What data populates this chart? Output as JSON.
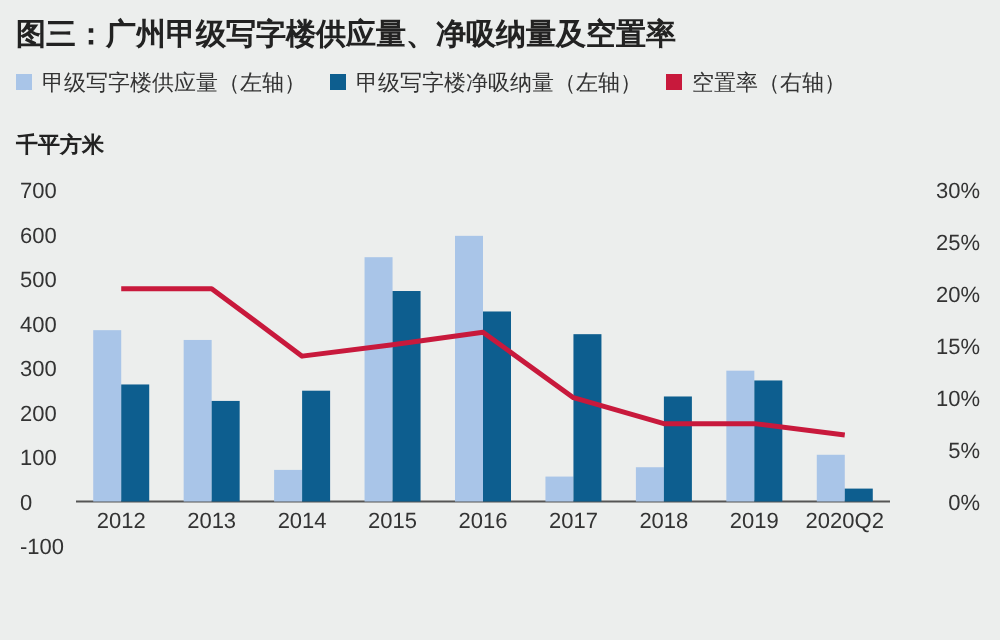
{
  "chart_data": {
    "type": "bar",
    "title": "图三：广州甲级写字楼供应量、净吸纳量及空置率",
    "ylabel": "千平方米",
    "categories": [
      "2012",
      "2013",
      "2014",
      "2015",
      "2016",
      "2017",
      "2018",
      "2019",
      "2020Q2"
    ],
    "series": [
      {
        "name": "甲级写字楼供应量（左轴）",
        "color": "#a9c5e8",
        "values": [
          385,
          363,
          71,
          549,
          597,
          56,
          77,
          294,
          105
        ]
      },
      {
        "name": "甲级写字楼净吸纳量（左轴）",
        "color": "#0d5e8f",
        "values": [
          263,
          226,
          249,
          473,
          427,
          376,
          236,
          272,
          29
        ]
      },
      {
        "name": "空置率（右轴）",
        "type": "line",
        "axis": "y2",
        "color": "#c8193c",
        "values": [
          20.5,
          20.5,
          14.0,
          15.1,
          16.3,
          10.0,
          7.5,
          7.5,
          6.4
        ]
      }
    ],
    "ylim": [
      -100,
      700
    ],
    "yticks": [
      -100,
      0,
      100,
      200,
      300,
      400,
      500,
      600,
      700
    ],
    "y2lim": [
      0,
      30
    ],
    "y2ticks": [
      {
        "value": 0,
        "label": "0%"
      },
      {
        "value": 5,
        "label": "5%"
      },
      {
        "value": 10,
        "label": "10%"
      },
      {
        "value": 15,
        "label": "15%"
      },
      {
        "value": 20,
        "label": "20%"
      },
      {
        "value": 25,
        "label": "25%"
      },
      {
        "value": 30,
        "label": "30%"
      }
    ],
    "legend": "top",
    "grid": false
  }
}
